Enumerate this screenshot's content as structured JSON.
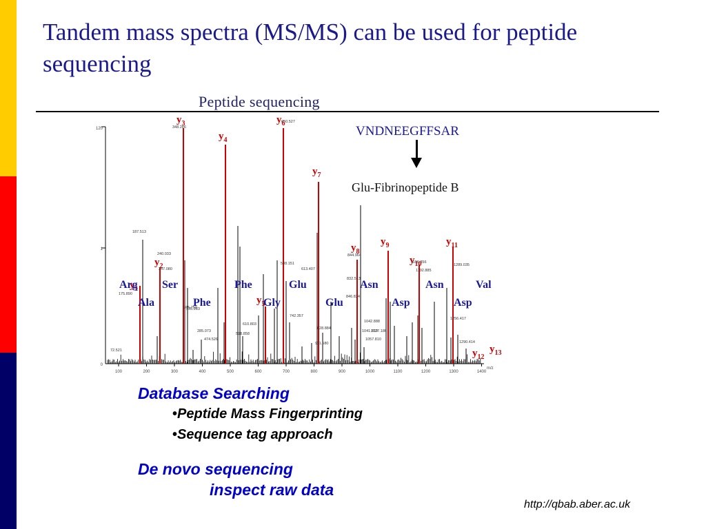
{
  "slide": {
    "title": "Tandem mass spectra (MS/MS) can be used for peptide sequencing"
  },
  "figure": {
    "heading": "Peptide sequencing",
    "peptide_sequence": "VNDNEEGFFSAR",
    "peptide_name": "Glu-Fibrinopeptide B",
    "colors": {
      "ion_line": "#cc0000",
      "residue_text": "#1a1a99",
      "noise": "#000000"
    },
    "y_axis_ticks": [
      "120",
      "1",
      "0"
    ],
    "x_axis_ticks": [
      "100",
      "200",
      "300",
      "400",
      "500",
      "600",
      "700",
      "800",
      "900",
      "1000",
      "1100",
      "1200",
      "1300",
      "1400"
    ],
    "x_axis_unit": "m/z",
    "ion_labels": [
      {
        "ion": "y",
        "sub": "1"
      },
      {
        "ion": "y",
        "sub": "2"
      },
      {
        "ion": "y",
        "sub": "3"
      },
      {
        "ion": "y",
        "sub": "4"
      },
      {
        "ion": "y",
        "sub": "5"
      },
      {
        "ion": "y",
        "sub": "6"
      },
      {
        "ion": "y",
        "sub": "7"
      },
      {
        "ion": "y",
        "sub": "8"
      },
      {
        "ion": "y",
        "sub": "9"
      },
      {
        "ion": "y",
        "sub": "10"
      },
      {
        "ion": "y",
        "sub": "11"
      },
      {
        "ion": "y",
        "sub": "12"
      },
      {
        "ion": "y",
        "sub": "13"
      }
    ],
    "residue_labels": [
      "Arg",
      "Ala",
      "Ser",
      "Phe",
      "Phe",
      "Gly",
      "Glu",
      "Glu",
      "Asn",
      "Asp",
      "Asn",
      "Asp",
      "Val"
    ],
    "peak_values": [
      "187.513",
      "175.890",
      "240.033",
      "247.080",
      "265.750",
      "72.521",
      "348.286",
      "335.283",
      "285.073",
      "474.526",
      "610.803",
      "598.858",
      "588.151",
      "742.357",
      "650.527",
      "613.407",
      "828.884",
      "844.964",
      "846.824",
      "832.513",
      "911.580",
      "1041.810",
      "1042.888",
      "1027.186",
      "1057.810",
      "1196.356",
      "1192.885",
      "1256.417",
      "1290.414",
      "1289.035"
    ]
  },
  "bullets": {
    "database_searching": "Database Searching",
    "pmf": "Peptide Mass Fingerprinting",
    "seq_tag": "Sequence tag approach",
    "de_novo": "De novo sequencing",
    "inspect": "inspect raw data",
    "bullet_char": "•"
  },
  "source": "http://qbab.aber.ac.uk"
}
